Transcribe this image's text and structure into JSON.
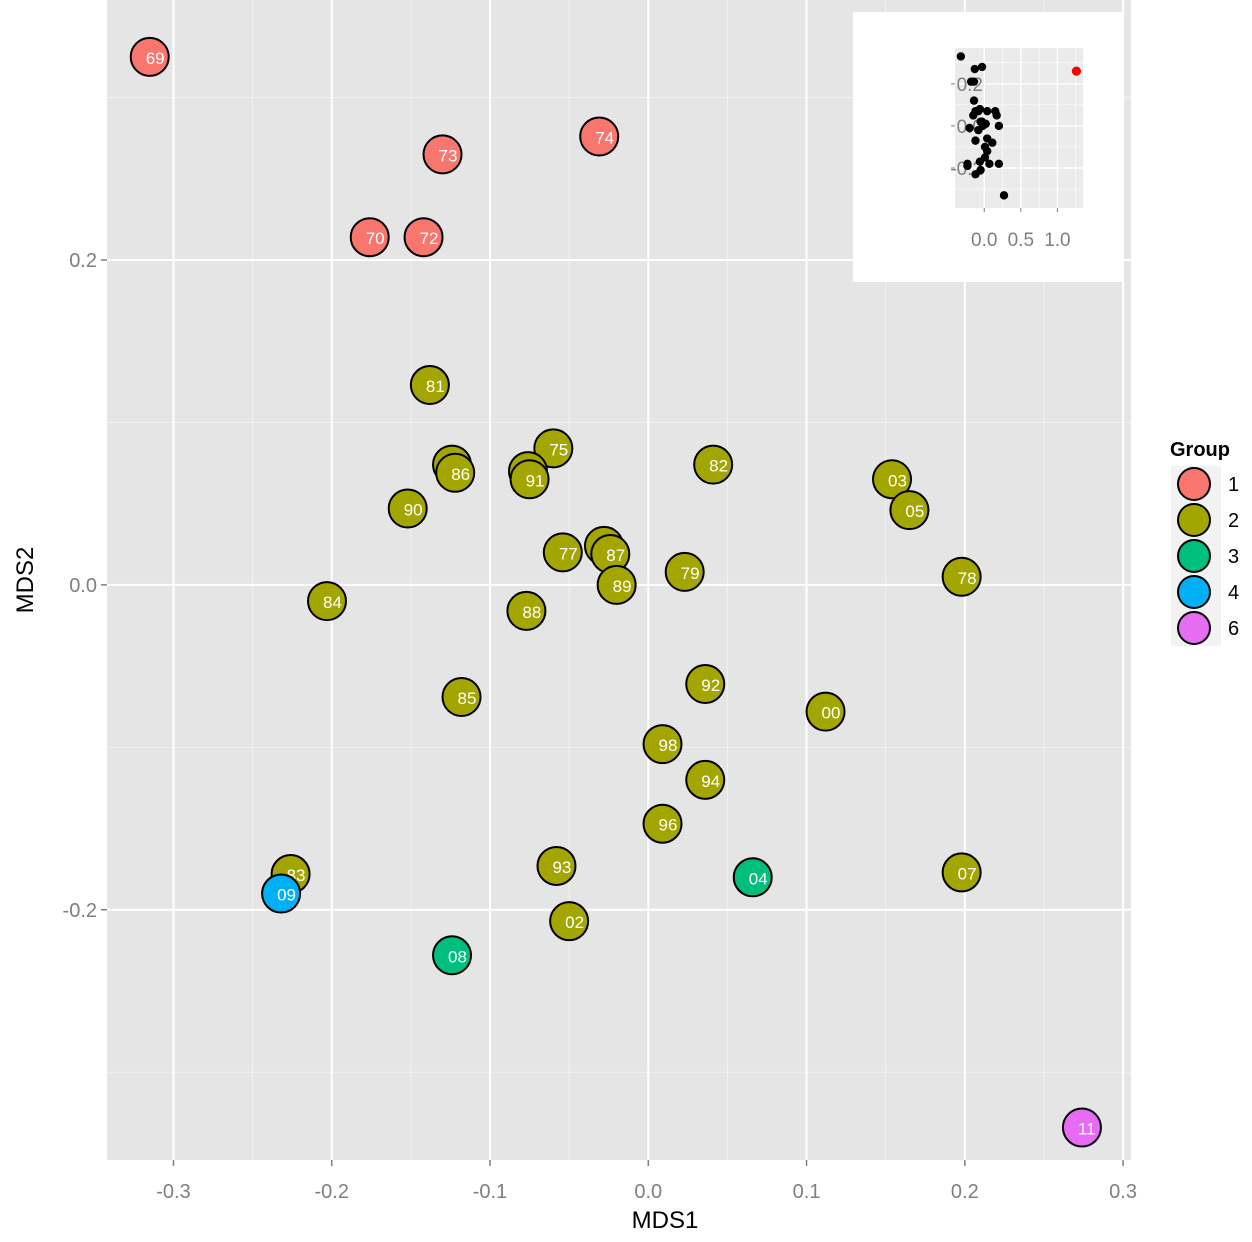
{
  "chart_data": [
    {
      "type": "scatter",
      "xlabel": "MDS1",
      "ylabel": "MDS2",
      "xlim": [
        -0.342,
        0.305
      ],
      "ylim": [
        -0.354,
        0.36
      ],
      "x_ticks": [
        "-0.3",
        "-0.2",
        "-0.1",
        "0.0",
        "0.1",
        "0.2",
        "0.3"
      ],
      "x_tick_values": [
        -0.3,
        -0.2,
        -0.1,
        0.0,
        0.1,
        0.2,
        0.3
      ],
      "y_ticks": [
        "-0.2",
        "0.0",
        "0.2"
      ],
      "y_tick_values": [
        -0.2,
        0.0,
        0.2
      ],
      "grid": true,
      "legend": {
        "title": "Group",
        "position": "right",
        "entries": [
          {
            "label": "1",
            "color": "#F8766D"
          },
          {
            "label": "2",
            "color": "#A3A500"
          },
          {
            "label": "3",
            "color": "#00BF7D"
          },
          {
            "label": "4",
            "color": "#00B0F6"
          },
          {
            "label": "6",
            "color": "#E76BF3"
          }
        ]
      },
      "points": [
        {
          "label": "69",
          "group": "1",
          "x": -0.315,
          "y": 0.325
        },
        {
          "label": "74",
          "group": "1",
          "x": -0.031,
          "y": 0.276
        },
        {
          "label": "73",
          "group": "1",
          "x": -0.13,
          "y": 0.265
        },
        {
          "label": "70",
          "group": "1",
          "x": -0.176,
          "y": 0.214
        },
        {
          "label": "72",
          "group": "1",
          "x": -0.142,
          "y": 0.214
        },
        {
          "label": "81",
          "group": "2",
          "x": -0.138,
          "y": 0.123
        },
        {
          "label": "75",
          "group": "2",
          "x": -0.06,
          "y": 0.084
        },
        {
          "label": "82",
          "group": "2",
          "x": 0.041,
          "y": 0.074
        },
        {
          "label": "71",
          "group": "2",
          "x": -0.124,
          "y": 0.074
        },
        {
          "label": "86",
          "group": "2",
          "x": -0.122,
          "y": 0.069
        },
        {
          "label": "76",
          "group": "2",
          "x": -0.076,
          "y": 0.07
        },
        {
          "label": "91",
          "group": "2",
          "x": -0.075,
          "y": 0.065
        },
        {
          "label": "03",
          "group": "2",
          "x": 0.154,
          "y": 0.065
        },
        {
          "label": "05",
          "group": "2",
          "x": 0.165,
          "y": 0.046
        },
        {
          "label": "90",
          "group": "2",
          "x": -0.152,
          "y": 0.047
        },
        {
          "label": "80",
          "group": "2",
          "x": -0.028,
          "y": 0.024
        },
        {
          "label": "77",
          "group": "2",
          "x": -0.054,
          "y": 0.02
        },
        {
          "label": "87",
          "group": "2",
          "x": -0.024,
          "y": 0.019
        },
        {
          "label": "79",
          "group": "2",
          "x": 0.023,
          "y": 0.008
        },
        {
          "label": "78",
          "group": "2",
          "x": 0.198,
          "y": 0.005
        },
        {
          "label": "89",
          "group": "2",
          "x": -0.02,
          "y": 0.0
        },
        {
          "label": "84",
          "group": "2",
          "x": -0.203,
          "y": -0.01
        },
        {
          "label": "88",
          "group": "2",
          "x": -0.077,
          "y": -0.016
        },
        {
          "label": "85",
          "group": "2",
          "x": -0.118,
          "y": -0.069
        },
        {
          "label": "92",
          "group": "2",
          "x": 0.036,
          "y": -0.061
        },
        {
          "label": "00",
          "group": "2",
          "x": 0.112,
          "y": -0.078
        },
        {
          "label": "98",
          "group": "2",
          "x": 0.009,
          "y": -0.098
        },
        {
          "label": "94",
          "group": "2",
          "x": 0.036,
          "y": -0.12
        },
        {
          "label": "96",
          "group": "2",
          "x": 0.009,
          "y": -0.147
        },
        {
          "label": "93",
          "group": "2",
          "x": -0.058,
          "y": -0.173
        },
        {
          "label": "07",
          "group": "2",
          "x": 0.198,
          "y": -0.177
        },
        {
          "label": "83",
          "group": "2",
          "x": -0.226,
          "y": -0.178
        },
        {
          "label": "02",
          "group": "2",
          "x": -0.05,
          "y": -0.207
        },
        {
          "label": "04",
          "group": "3",
          "x": 0.066,
          "y": -0.18
        },
        {
          "label": "08",
          "group": "3",
          "x": -0.124,
          "y": -0.228
        },
        {
          "label": "09",
          "group": "4",
          "x": -0.232,
          "y": -0.19
        },
        {
          "label": "11",
          "group": "6",
          "x": 0.274,
          "y": -0.334
        }
      ]
    },
    {
      "type": "scatter",
      "role": "inset",
      "x_ticks": [
        "0.0",
        "0.5",
        "1.0"
      ],
      "x_tick_values": [
        0.0,
        0.5,
        1.0
      ],
      "y_ticks": [
        "0.2",
        "0.0",
        "-0.2"
      ],
      "y_tick_values": [
        0.2,
        0.0,
        -0.2
      ],
      "xlim": [
        -0.4,
        1.35
      ],
      "ylim": [
        -0.39,
        0.37
      ],
      "grid": true,
      "point_color": "#000000",
      "highlight_color": "#ff0000",
      "points": [
        {
          "x": -0.32,
          "y": 0.33
        },
        {
          "x": -0.03,
          "y": 0.28
        },
        {
          "x": -0.13,
          "y": 0.27
        },
        {
          "x": -0.18,
          "y": 0.21
        },
        {
          "x": -0.14,
          "y": 0.21
        },
        {
          "x": -0.14,
          "y": 0.12
        },
        {
          "x": -0.06,
          "y": 0.08
        },
        {
          "x": 0.04,
          "y": 0.07
        },
        {
          "x": -0.12,
          "y": 0.07
        },
        {
          "x": -0.08,
          "y": 0.07
        },
        {
          "x": 0.15,
          "y": 0.07
        },
        {
          "x": 0.17,
          "y": 0.05
        },
        {
          "x": -0.15,
          "y": 0.05
        },
        {
          "x": -0.03,
          "y": 0.02
        },
        {
          "x": -0.05,
          "y": 0.02
        },
        {
          "x": 0.02,
          "y": 0.01
        },
        {
          "x": 0.2,
          "y": 0.0
        },
        {
          "x": -0.02,
          "y": 0.0
        },
        {
          "x": -0.2,
          "y": -0.01
        },
        {
          "x": -0.08,
          "y": -0.02
        },
        {
          "x": -0.12,
          "y": -0.07
        },
        {
          "x": 0.04,
          "y": -0.06
        },
        {
          "x": 0.11,
          "y": -0.08
        },
        {
          "x": 0.01,
          "y": -0.1
        },
        {
          "x": 0.04,
          "y": -0.12
        },
        {
          "x": 0.01,
          "y": -0.15
        },
        {
          "x": -0.06,
          "y": -0.17
        },
        {
          "x": 0.2,
          "y": -0.18
        },
        {
          "x": -0.23,
          "y": -0.18
        },
        {
          "x": -0.05,
          "y": -0.21
        },
        {
          "x": 0.07,
          "y": -0.18
        },
        {
          "x": -0.12,
          "y": -0.23
        },
        {
          "x": -0.23,
          "y": -0.19
        },
        {
          "x": 0.27,
          "y": -0.33
        }
      ],
      "highlight_points": [
        {
          "x": 1.26,
          "y": 0.26
        }
      ]
    }
  ]
}
